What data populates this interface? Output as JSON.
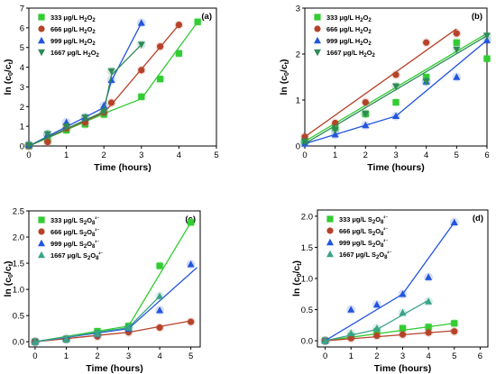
{
  "chart_data": [
    {
      "type": "scatter",
      "panel_label": "(a)",
      "xlabel": "Time (hours)",
      "ylabel": "ln (c0/ct)",
      "xlim": [
        0,
        5
      ],
      "ylim": [
        0,
        7
      ],
      "xticks": [
        0,
        1,
        2,
        3,
        4,
        5
      ],
      "yticks": [
        0,
        1,
        2,
        3,
        4,
        5,
        6,
        7
      ],
      "legend_position": "top-left",
      "series": [
        {
          "name": "333 μg/L H2O2",
          "marker": "square",
          "color": "#33cc33",
          "x": [
            0,
            0.5,
            1,
            1.5,
            2,
            3,
            3.5,
            4,
            4.5
          ],
          "y": [
            0,
            0.3,
            0.8,
            1.1,
            1.6,
            2.5,
            3.4,
            4.7,
            6.3
          ],
          "fit": [
            [
              0,
              0
            ],
            [
              2.2,
              1.8
            ],
            [
              3,
              2.4
            ],
            [
              4.5,
              6.3
            ]
          ]
        },
        {
          "name": "666 μg/L H2O2",
          "marker": "circle",
          "color": "#b5432a",
          "x": [
            0,
            0.5,
            1,
            1.5,
            2,
            2.2,
            3,
            3.5,
            4
          ],
          "y": [
            0,
            0.2,
            0.9,
            1.2,
            1.7,
            2.2,
            3.85,
            5.05,
            6.15
          ],
          "fit": [
            [
              0,
              0
            ],
            [
              2,
              1.7
            ],
            [
              2.2,
              2.1
            ],
            [
              4,
              6.15
            ]
          ]
        },
        {
          "name": "999 μg/L H2O2",
          "marker": "triangle-up",
          "color": "#2255dd",
          "x": [
            0,
            0.5,
            1,
            1.5,
            2,
            2.2,
            3
          ],
          "y": [
            0.05,
            0.6,
            1.2,
            1.45,
            2.05,
            3.35,
            6.25
          ],
          "fit": [
            [
              0,
              0
            ],
            [
              2,
              1.95
            ],
            [
              2.2,
              3.3
            ],
            [
              3,
              6.25
            ]
          ]
        },
        {
          "name": "1667 μg/L H2O2",
          "marker": "triangle-down",
          "color": "#2e8b57",
          "x": [
            0,
            0.5,
            1,
            1.5,
            2,
            2.2,
            3
          ],
          "y": [
            0.05,
            0.6,
            1.0,
            1.45,
            1.75,
            3.8,
            5.15
          ],
          "fit": [
            [
              0,
              0
            ],
            [
              2,
              1.75
            ],
            [
              2.2,
              3.6
            ],
            [
              3,
              5.15
            ]
          ]
        }
      ]
    },
    {
      "type": "scatter",
      "panel_label": "(b)",
      "xlabel": "Time (hours)",
      "ylabel": "ln (c0/ct)",
      "xlim": [
        0,
        6
      ],
      "ylim": [
        0,
        3
      ],
      "xticks": [
        0,
        1,
        2,
        3,
        4,
        5,
        6
      ],
      "yticks": [
        0,
        1,
        2,
        3
      ],
      "legend_position": "top-left",
      "series": [
        {
          "name": "333 μg/L H2O2",
          "marker": "square",
          "color": "#33cc33",
          "x": [
            0,
            1,
            2,
            3,
            4,
            5,
            6
          ],
          "y": [
            0.1,
            0.4,
            0.7,
            0.95,
            1.5,
            2.25,
            1.9
          ],
          "fit": [
            [
              0,
              0.1
            ],
            [
              6,
              2.45
            ]
          ]
        },
        {
          "name": "666 μg/L H2O2",
          "marker": "circle",
          "color": "#b5432a",
          "x": [
            0,
            1,
            2,
            3,
            4,
            5
          ],
          "y": [
            0.2,
            0.5,
            0.95,
            1.55,
            2.25,
            2.45
          ],
          "fit": [
            [
              0,
              0.2
            ],
            [
              5,
              2.55
            ]
          ]
        },
        {
          "name": "999 μg/L H2O2",
          "marker": "triangle-up",
          "color": "#2255dd",
          "x": [
            0,
            1,
            2,
            3,
            4,
            5,
            6
          ],
          "y": [
            0.05,
            0.25,
            0.45,
            0.65,
            1.4,
            1.5,
            2.3
          ],
          "fit": [
            [
              0,
              0.05
            ],
            [
              1,
              0.25
            ],
            [
              2,
              0.45
            ],
            [
              3,
              0.65
            ],
            [
              6,
              2.3
            ]
          ]
        },
        {
          "name": "1667 μg/L H2O2",
          "marker": "triangle-down",
          "color": "#2e8b57",
          "x": [
            0,
            1,
            2,
            3,
            4,
            5,
            6
          ],
          "y": [
            0.1,
            0.35,
            0.7,
            1.3,
            1.4,
            2.1,
            2.4
          ],
          "fit": [
            [
              0,
              0.05
            ],
            [
              6,
              2.4
            ]
          ]
        }
      ]
    },
    {
      "type": "scatter",
      "panel_label": "(c)",
      "xlabel": "Time (hours)",
      "ylabel": "ln (c0/ct)",
      "xlim": [
        -0.2,
        5.3
      ],
      "ylim": [
        -0.1,
        2.5
      ],
      "xticks": [
        0,
        1,
        2,
        3,
        4,
        5
      ],
      "yticks": [
        0.0,
        0.5,
        1.0,
        1.5,
        2.0,
        2.5
      ],
      "legend_position": "top-left",
      "series": [
        {
          "name": "333 μg/L S2O8²⁻",
          "marker": "square",
          "color": "#33cc33",
          "x": [
            0,
            1,
            2,
            3,
            4,
            5
          ],
          "y": [
            0,
            0.05,
            0.2,
            0.3,
            1.45,
            2.28
          ],
          "fit": [
            [
              0,
              0
            ],
            [
              3,
              0.3
            ],
            [
              5,
              2.28
            ]
          ]
        },
        {
          "name": "666 μg/L S2O8²⁻",
          "marker": "circle",
          "color": "#b5432a",
          "x": [
            0,
            1,
            2,
            3,
            4,
            5
          ],
          "y": [
            0,
            0.05,
            0.1,
            0.18,
            0.27,
            0.38
          ],
          "fit": [
            [
              0,
              0
            ],
            [
              3,
              0.18
            ],
            [
              5,
              0.4
            ]
          ]
        },
        {
          "name": "999 μg/L S2O8²⁻",
          "marker": "triangle-up",
          "color": "#2255dd",
          "x": [
            0,
            1,
            2,
            3,
            4,
            5
          ],
          "y": [
            0,
            0.05,
            0.15,
            0.25,
            0.6,
            1.48
          ],
          "fit": [
            [
              0,
              0
            ],
            [
              3,
              0.25
            ],
            [
              5.2,
              1.42
            ]
          ]
        },
        {
          "name": "1667 μg/L S2O8²⁻",
          "marker": "triangle-up",
          "color": "#3aa38a",
          "x": [
            0,
            1,
            2,
            3,
            4
          ],
          "y": [
            0,
            0.05,
            0.15,
            0.27,
            0.87
          ],
          "fit": [
            [
              0,
              0
            ],
            [
              3,
              0.27
            ],
            [
              4,
              0.87
            ]
          ]
        }
      ]
    },
    {
      "type": "scatter",
      "panel_label": "(d)",
      "xlabel": "Time (hours)",
      "ylabel": "ln (c0/ct)",
      "xlim": [
        -0.3,
        6.3
      ],
      "ylim": [
        -0.1,
        2.1
      ],
      "xticks": [
        0,
        1,
        2,
        3,
        4,
        5,
        6
      ],
      "yticks": [
        0.0,
        0.5,
        1.0,
        1.5,
        2.0
      ],
      "legend_position": "top-left",
      "series": [
        {
          "name": "333 μg/L S2O8²⁻",
          "marker": "square",
          "color": "#33cc33",
          "x": [
            0,
            1,
            2,
            3,
            4,
            5
          ],
          "y": [
            0,
            0.07,
            0.15,
            0.2,
            0.22,
            0.28
          ],
          "fit": [
            [
              0,
              0
            ],
            [
              5,
              0.28
            ]
          ]
        },
        {
          "name": "666 μg/L S2O8²⁻",
          "marker": "circle",
          "color": "#b5432a",
          "x": [
            0,
            1,
            2,
            3,
            4,
            5
          ],
          "y": [
            0,
            0.04,
            0.08,
            0.1,
            0.13,
            0.15
          ],
          "fit": [
            [
              0,
              0
            ],
            [
              5,
              0.16
            ]
          ]
        },
        {
          "name": "999 μg/L S2O8²⁻",
          "marker": "triangle-up",
          "color": "#2255dd",
          "x": [
            0,
            1,
            2,
            3,
            4,
            5
          ],
          "y": [
            0,
            0.5,
            0.58,
            0.75,
            1.02,
            1.9
          ],
          "fit": [
            [
              0,
              0
            ],
            [
              3,
              0.75
            ],
            [
              5,
              1.9
            ]
          ]
        },
        {
          "name": "1667 μg/L S2O8²⁻",
          "marker": "triangle-up",
          "color": "#3aa38a",
          "x": [
            0,
            1,
            2,
            3,
            4
          ],
          "y": [
            0,
            0.12,
            0.2,
            0.45,
            0.63
          ],
          "fit": [
            [
              0,
              0
            ],
            [
              2,
              0.18
            ],
            [
              4,
              0.65
            ]
          ]
        }
      ]
    }
  ]
}
